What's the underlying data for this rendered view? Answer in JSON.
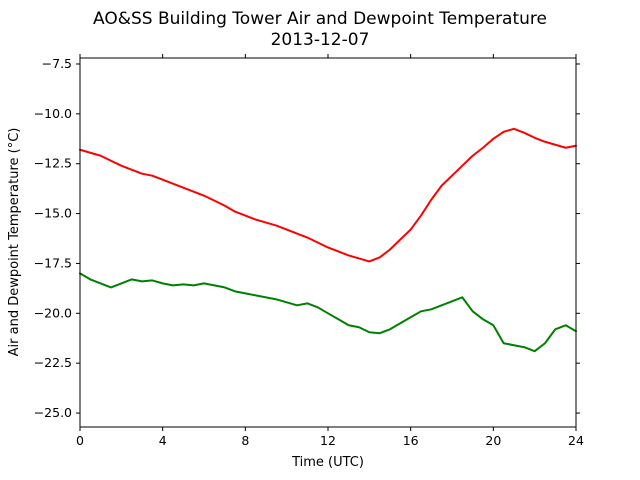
{
  "chart_data": {
    "type": "line",
    "title": "AO&SS Building Tower Air and Dewpoint Temperature",
    "subtitle": "2013-12-07",
    "xlabel": "Time (UTC)",
    "ylabel": "Air and Dewpoint Temperature (°C)",
    "xlim": [
      0,
      24
    ],
    "ylim": [
      -25.7,
      -7.2
    ],
    "x_ticks": [
      0,
      4,
      8,
      12,
      16,
      20,
      24
    ],
    "x_tick_labels": [
      "0",
      "4",
      "8",
      "12",
      "16",
      "20",
      "24"
    ],
    "y_ticks": [
      -7.5,
      -10.0,
      -12.5,
      -15.0,
      -17.5,
      -20.0,
      -22.5,
      -25.0
    ],
    "y_tick_labels": [
      "−7.5",
      "−10.0",
      "−12.5",
      "−15.0",
      "−17.5",
      "−20.0",
      "−22.5",
      "−25.0"
    ],
    "grid": false,
    "legend": "none",
    "series": [
      {
        "color": "#ff0000",
        "x": [
          0,
          0.5,
          1,
          1.5,
          2,
          2.5,
          3,
          3.5,
          4,
          4.5,
          5,
          5.5,
          6,
          6.5,
          7,
          7.5,
          8,
          8.5,
          9,
          9.5,
          10,
          10.5,
          11,
          11.5,
          12,
          12.5,
          13,
          13.5,
          14,
          14.5,
          15,
          15.5,
          16,
          16.5,
          17,
          17.5,
          18,
          18.5,
          19,
          19.5,
          20,
          20.5,
          21,
          21.5,
          22,
          22.5,
          23,
          23.5,
          24
        ],
        "y": [
          -11.8,
          -11.95,
          -12.1,
          -12.35,
          -12.6,
          -12.8,
          -13.0,
          -13.1,
          -13.3,
          -13.5,
          -13.7,
          -13.9,
          -14.1,
          -14.35,
          -14.6,
          -14.9,
          -15.1,
          -15.3,
          -15.45,
          -15.6,
          -15.8,
          -16.0,
          -16.2,
          -16.45,
          -16.7,
          -16.9,
          -17.1,
          -17.25,
          -17.4,
          -17.2,
          -16.8,
          -16.3,
          -15.8,
          -15.1,
          -14.3,
          -13.6,
          -13.1,
          -12.6,
          -12.1,
          -11.7,
          -11.25,
          -10.9,
          -10.75,
          -10.95,
          -11.2,
          -11.4,
          -11.55,
          -11.7,
          -11.6
        ]
      },
      {
        "color": "#008000",
        "x": [
          0,
          0.5,
          1,
          1.5,
          2,
          2.5,
          3,
          3.5,
          4,
          4.5,
          5,
          5.5,
          6,
          6.5,
          7,
          7.5,
          8,
          8.5,
          9,
          9.5,
          10,
          10.5,
          11,
          11.5,
          12,
          12.5,
          13,
          13.5,
          14,
          14.5,
          15,
          15.5,
          16,
          16.5,
          17,
          17.5,
          18,
          18.5,
          19,
          19.5,
          20,
          20.5,
          21,
          21.5,
          22,
          22.5,
          23,
          23.5,
          24
        ],
        "y": [
          -18.0,
          -18.3,
          -18.5,
          -18.7,
          -18.5,
          -18.3,
          -18.4,
          -18.35,
          -18.5,
          -18.6,
          -18.55,
          -18.6,
          -18.5,
          -18.6,
          -18.7,
          -18.9,
          -19.0,
          -19.1,
          -19.2,
          -19.3,
          -19.45,
          -19.6,
          -19.5,
          -19.7,
          -20.0,
          -20.3,
          -20.6,
          -20.7,
          -20.95,
          -21.0,
          -20.8,
          -20.5,
          -20.2,
          -19.9,
          -19.8,
          -19.6,
          -19.4,
          -19.2,
          -19.9,
          -20.3,
          -20.6,
          -21.5,
          -21.6,
          -21.7,
          -21.9,
          -21.5,
          -20.8,
          -20.6,
          -20.9
        ]
      }
    ]
  }
}
